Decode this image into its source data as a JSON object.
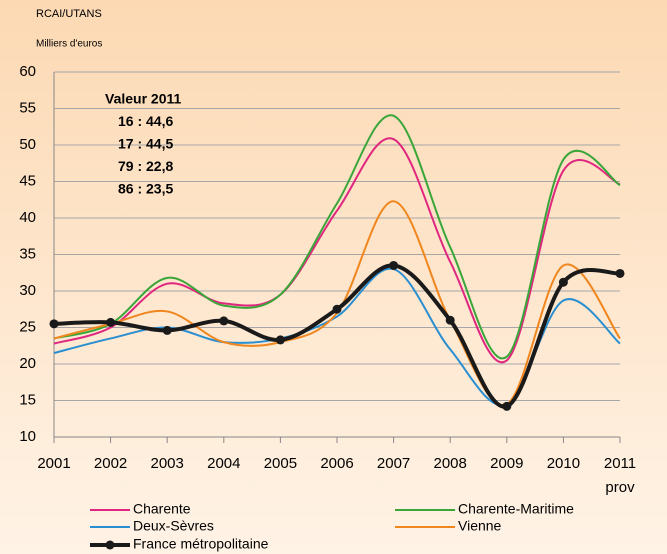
{
  "chart_data": {
    "type": "line",
    "y_label_1": "RCAI/UTANS",
    "y_label_2": "Milliers d'euros",
    "categories": [
      "2001",
      "2002",
      "2003",
      "2004",
      "2005",
      "2006",
      "2007",
      "2008",
      "2009",
      "2010",
      "2011"
    ],
    "category_note": "prov",
    "ylim": [
      10,
      60
    ],
    "yticks": [
      10,
      15,
      20,
      25,
      30,
      35,
      40,
      45,
      50,
      55,
      60
    ],
    "grid": true,
    "legend": "bottom",
    "annotations": [
      "Valeur 2011",
      "16 : 44,6",
      "17 : 44,5",
      "79 : 22,8",
      "86 : 23,5"
    ],
    "series": [
      {
        "name": "Charente",
        "color": "#e0267f",
        "values": [
          22.8,
          25,
          31,
          28.3,
          29.5,
          41,
          50.8,
          34,
          20.5,
          46.5,
          44.6
        ]
      },
      {
        "name": "Charente-Maritime",
        "color": "#3aa63a",
        "values": [
          23.5,
          25.5,
          31.8,
          28,
          29.5,
          42,
          54,
          36,
          21,
          48,
          44.5
        ]
      },
      {
        "name": "Deux-Sèvres",
        "color": "#2a8fd0",
        "values": [
          21.5,
          23.5,
          25,
          23,
          23.5,
          26.5,
          33,
          22,
          14.5,
          28.7,
          22.8
        ]
      },
      {
        "name": "Vienne",
        "color": "#f0861e",
        "values": [
          23.5,
          25.5,
          27.2,
          23,
          23,
          27,
          42.3,
          26,
          14.5,
          33.5,
          23.5
        ]
      },
      {
        "name": "France métropolitaine",
        "color": "#1a1a1a",
        "markers": true,
        "values": [
          25.5,
          25.7,
          24.6,
          25.9,
          23.3,
          27.5,
          33.5,
          26,
          14.2,
          31.2,
          32.4
        ]
      }
    ]
  }
}
